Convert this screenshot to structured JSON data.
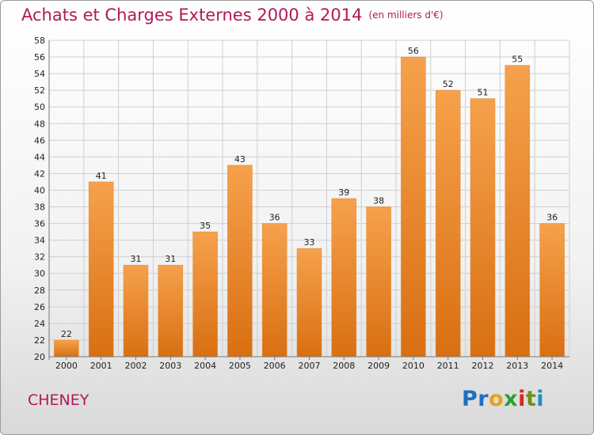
{
  "title": "Achats et Charges Externes 2000 à 2014",
  "subtitle": "(en milliers d'€)",
  "town": "CHENEY",
  "logo": [
    "Pr",
    "o",
    "x",
    "i",
    "t",
    "i"
  ],
  "colors": {
    "bar_top": "#f6a14c",
    "bar_bottom": "#d96f12",
    "title": "#b2185a"
  },
  "chart_data": {
    "type": "bar",
    "title": "Achats et Charges Externes 2000 à 2014",
    "subtitle": "(en milliers d'€)",
    "categories": [
      "2000",
      "2001",
      "2002",
      "2003",
      "2004",
      "2005",
      "2006",
      "2007",
      "2008",
      "2009",
      "2010",
      "2011",
      "2012",
      "2013",
      "2014"
    ],
    "values": [
      22,
      41,
      31,
      31,
      35,
      43,
      36,
      33,
      39,
      38,
      56,
      52,
      51,
      55,
      36
    ],
    "ylim": [
      20,
      58
    ],
    "yticks": [
      20,
      22,
      24,
      26,
      28,
      30,
      32,
      34,
      36,
      38,
      40,
      42,
      44,
      46,
      48,
      50,
      52,
      54,
      56,
      58
    ],
    "grid": true,
    "data_labels": true
  }
}
